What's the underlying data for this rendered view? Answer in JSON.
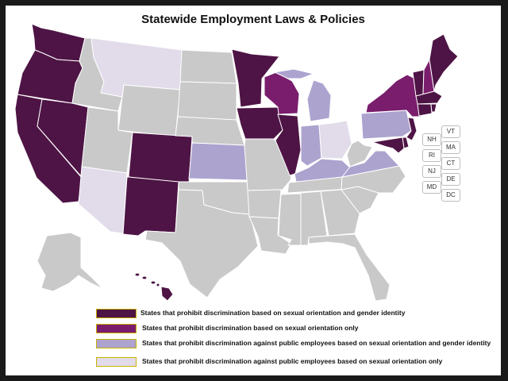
{
  "title": "Statewide Employment Laws & Policies",
  "colors": {
    "so_gi": "#4e1445",
    "so_only": "#7a1d6d",
    "public_so_gi": "#ada3cf",
    "public_so_only": "#e1dbea",
    "no_policy": "#c9c9c9",
    "border": "#ffffff"
  },
  "small_state_labels": [
    "NH",
    "VT",
    "RI",
    "MA",
    "NJ",
    "CT",
    "MD",
    "DE",
    "DC"
  ],
  "legend": [
    {
      "category": "so_gi",
      "label": "States that prohibit discrimination based on sexual orientation and gender identity"
    },
    {
      "category": "so_only",
      "label": "States that prohibit discrimination based on sexual orientation only"
    },
    {
      "category": "public_so_gi",
      "label": "States that prohibit discrimination against public employees based on sexual orientation and gender identity"
    },
    {
      "category": "public_so_only",
      "label": "States that prohibit discrimination against public employees based on sexual orientation only"
    }
  ]
}
